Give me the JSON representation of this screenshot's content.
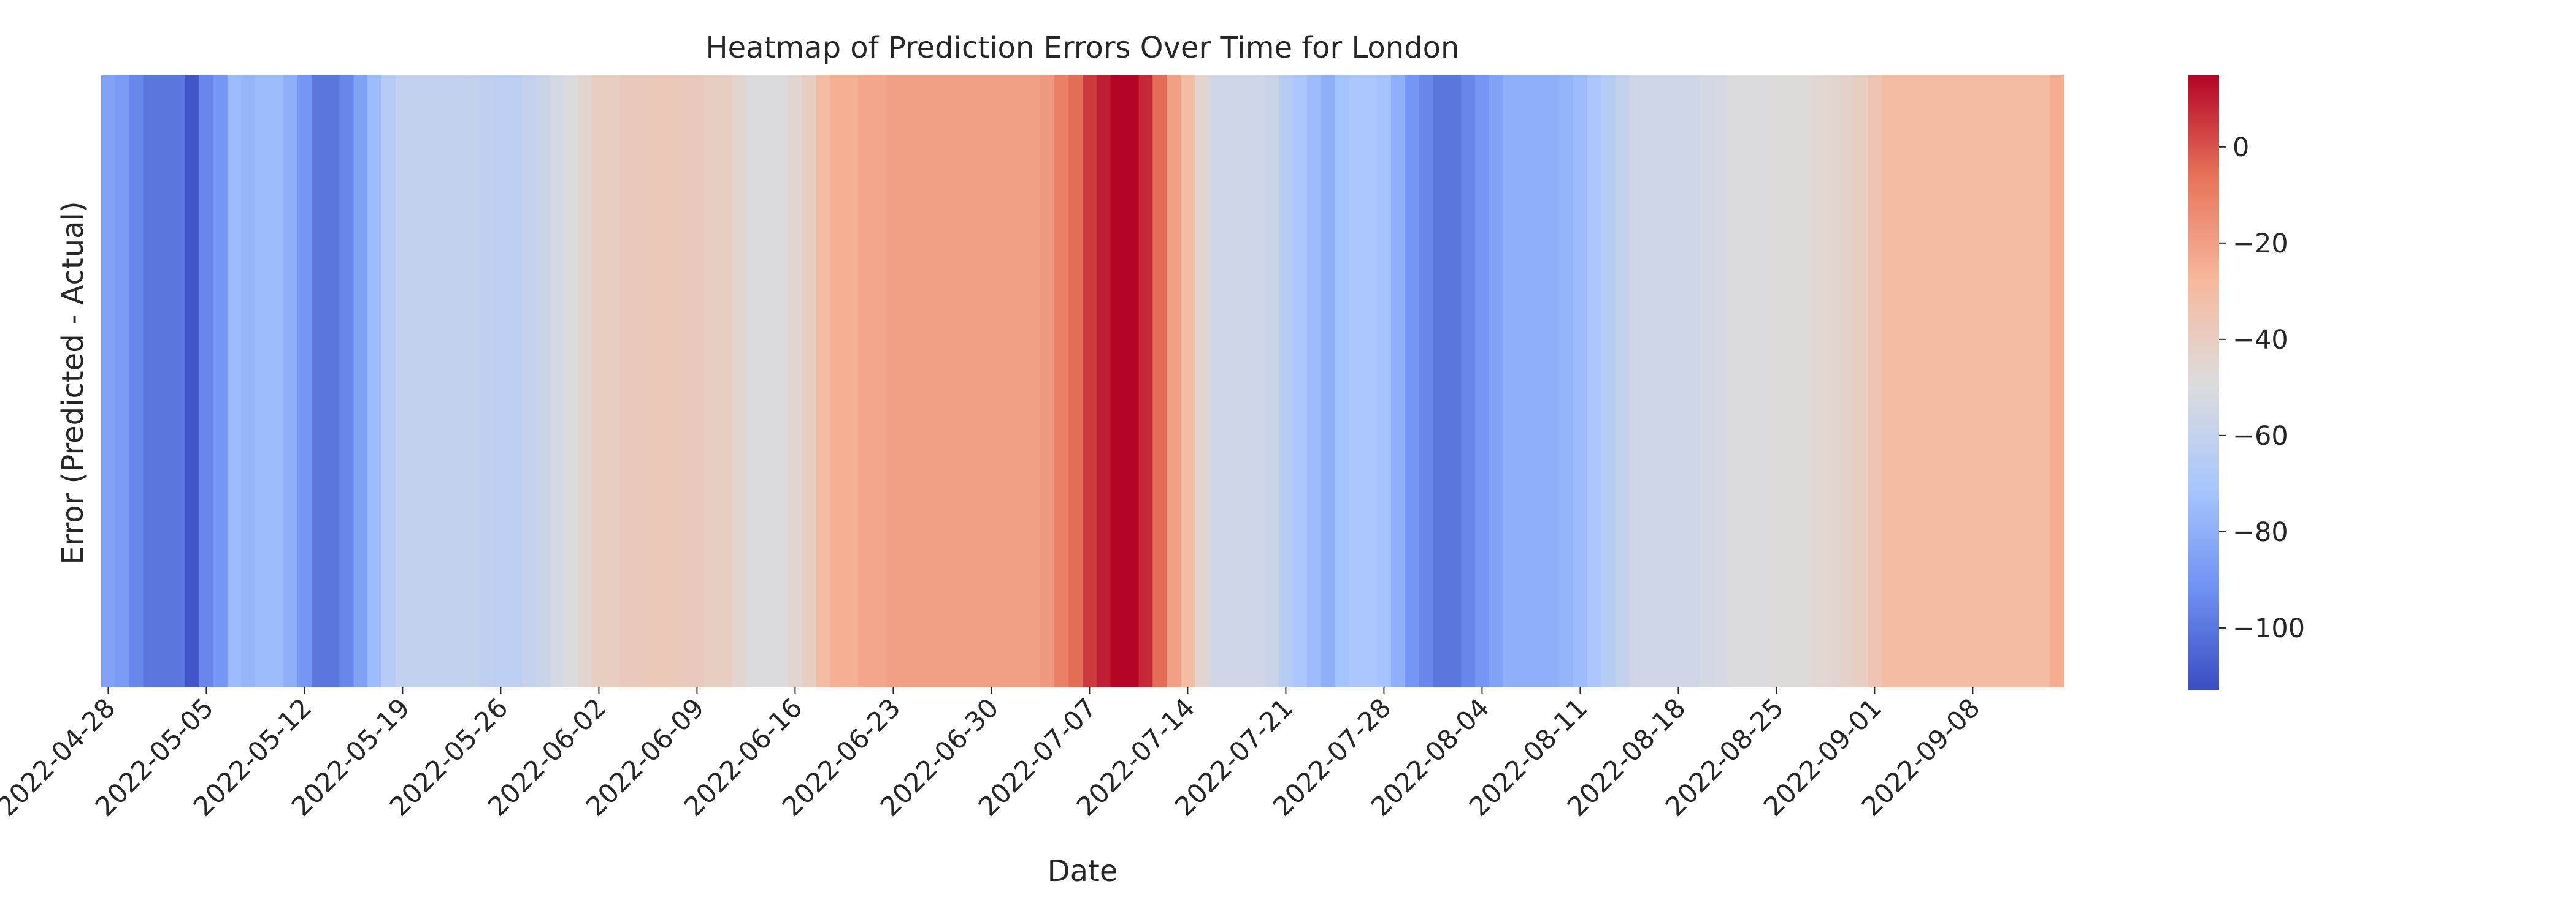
{
  "chart_data": {
    "type": "heatmap",
    "title": "Heatmap of Prediction Errors Over Time for London",
    "xlabel": "Date",
    "ylabel": "Error (Predicted - Actual)",
    "colormap": "coolwarm",
    "colormap_stops": [
      "#3b4cc0",
      "#6f92f3",
      "#aac7fd",
      "#dddcdc",
      "#f7b89c",
      "#e7745b",
      "#b40426"
    ],
    "x_ticks": [
      "2022-04-28",
      "2022-05-05",
      "2022-05-12",
      "2022-05-19",
      "2022-05-26",
      "2022-06-02",
      "2022-06-09",
      "2022-06-16",
      "2022-06-23",
      "2022-06-30",
      "2022-07-07",
      "2022-07-14",
      "2022-07-21",
      "2022-07-28",
      "2022-08-04",
      "2022-08-11",
      "2022-08-18",
      "2022-08-25",
      "2022-09-01",
      "2022-09-08"
    ],
    "start_date": "2022-04-28",
    "values": [
      -85,
      -88,
      -95,
      -100,
      -100,
      -100,
      -110,
      -95,
      -90,
      -75,
      -78,
      -75,
      -75,
      -80,
      -90,
      -100,
      -100,
      -95,
      -85,
      -75,
      -65,
      -60,
      -60,
      -60,
      -60,
      -60,
      -60,
      -62,
      -63,
      -63,
      -60,
      -57,
      -53,
      -50,
      -45,
      -40,
      -40,
      -38,
      -38,
      -37,
      -37,
      -38,
      -38,
      -40,
      -40,
      -45,
      -50,
      -50,
      -50,
      -45,
      -40,
      -30,
      -25,
      -25,
      -22,
      -22,
      -20,
      -20,
      -20,
      -20,
      -20,
      -20,
      -20,
      -20,
      -20,
      -20,
      -20,
      -18,
      -10,
      -5,
      5,
      10,
      15,
      15,
      8,
      -5,
      -20,
      -30,
      -45,
      -55,
      -55,
      -55,
      -55,
      -57,
      -65,
      -70,
      -75,
      -80,
      -72,
      -70,
      -70,
      -72,
      -80,
      -90,
      -95,
      -100,
      -100,
      -95,
      -90,
      -85,
      -80,
      -80,
      -80,
      -80,
      -78,
      -75,
      -70,
      -65,
      -60,
      -55,
      -55,
      -55,
      -55,
      -55,
      -53,
      -52,
      -50,
      -50,
      -50,
      -48,
      -48,
      -48,
      -46,
      -45,
      -43,
      -40,
      -35,
      -30,
      -30,
      -30,
      -30,
      -30,
      -30,
      -30,
      -30,
      -30,
      -30,
      -30,
      -30,
      -24
    ],
    "colorbar": {
      "range": [
        -113,
        15
      ],
      "ticks": [
        0,
        -20,
        -40,
        -60,
        -80,
        -100
      ],
      "tick_labels": [
        "0",
        "−20",
        "−40",
        "−60",
        "−80",
        "−100"
      ]
    }
  }
}
